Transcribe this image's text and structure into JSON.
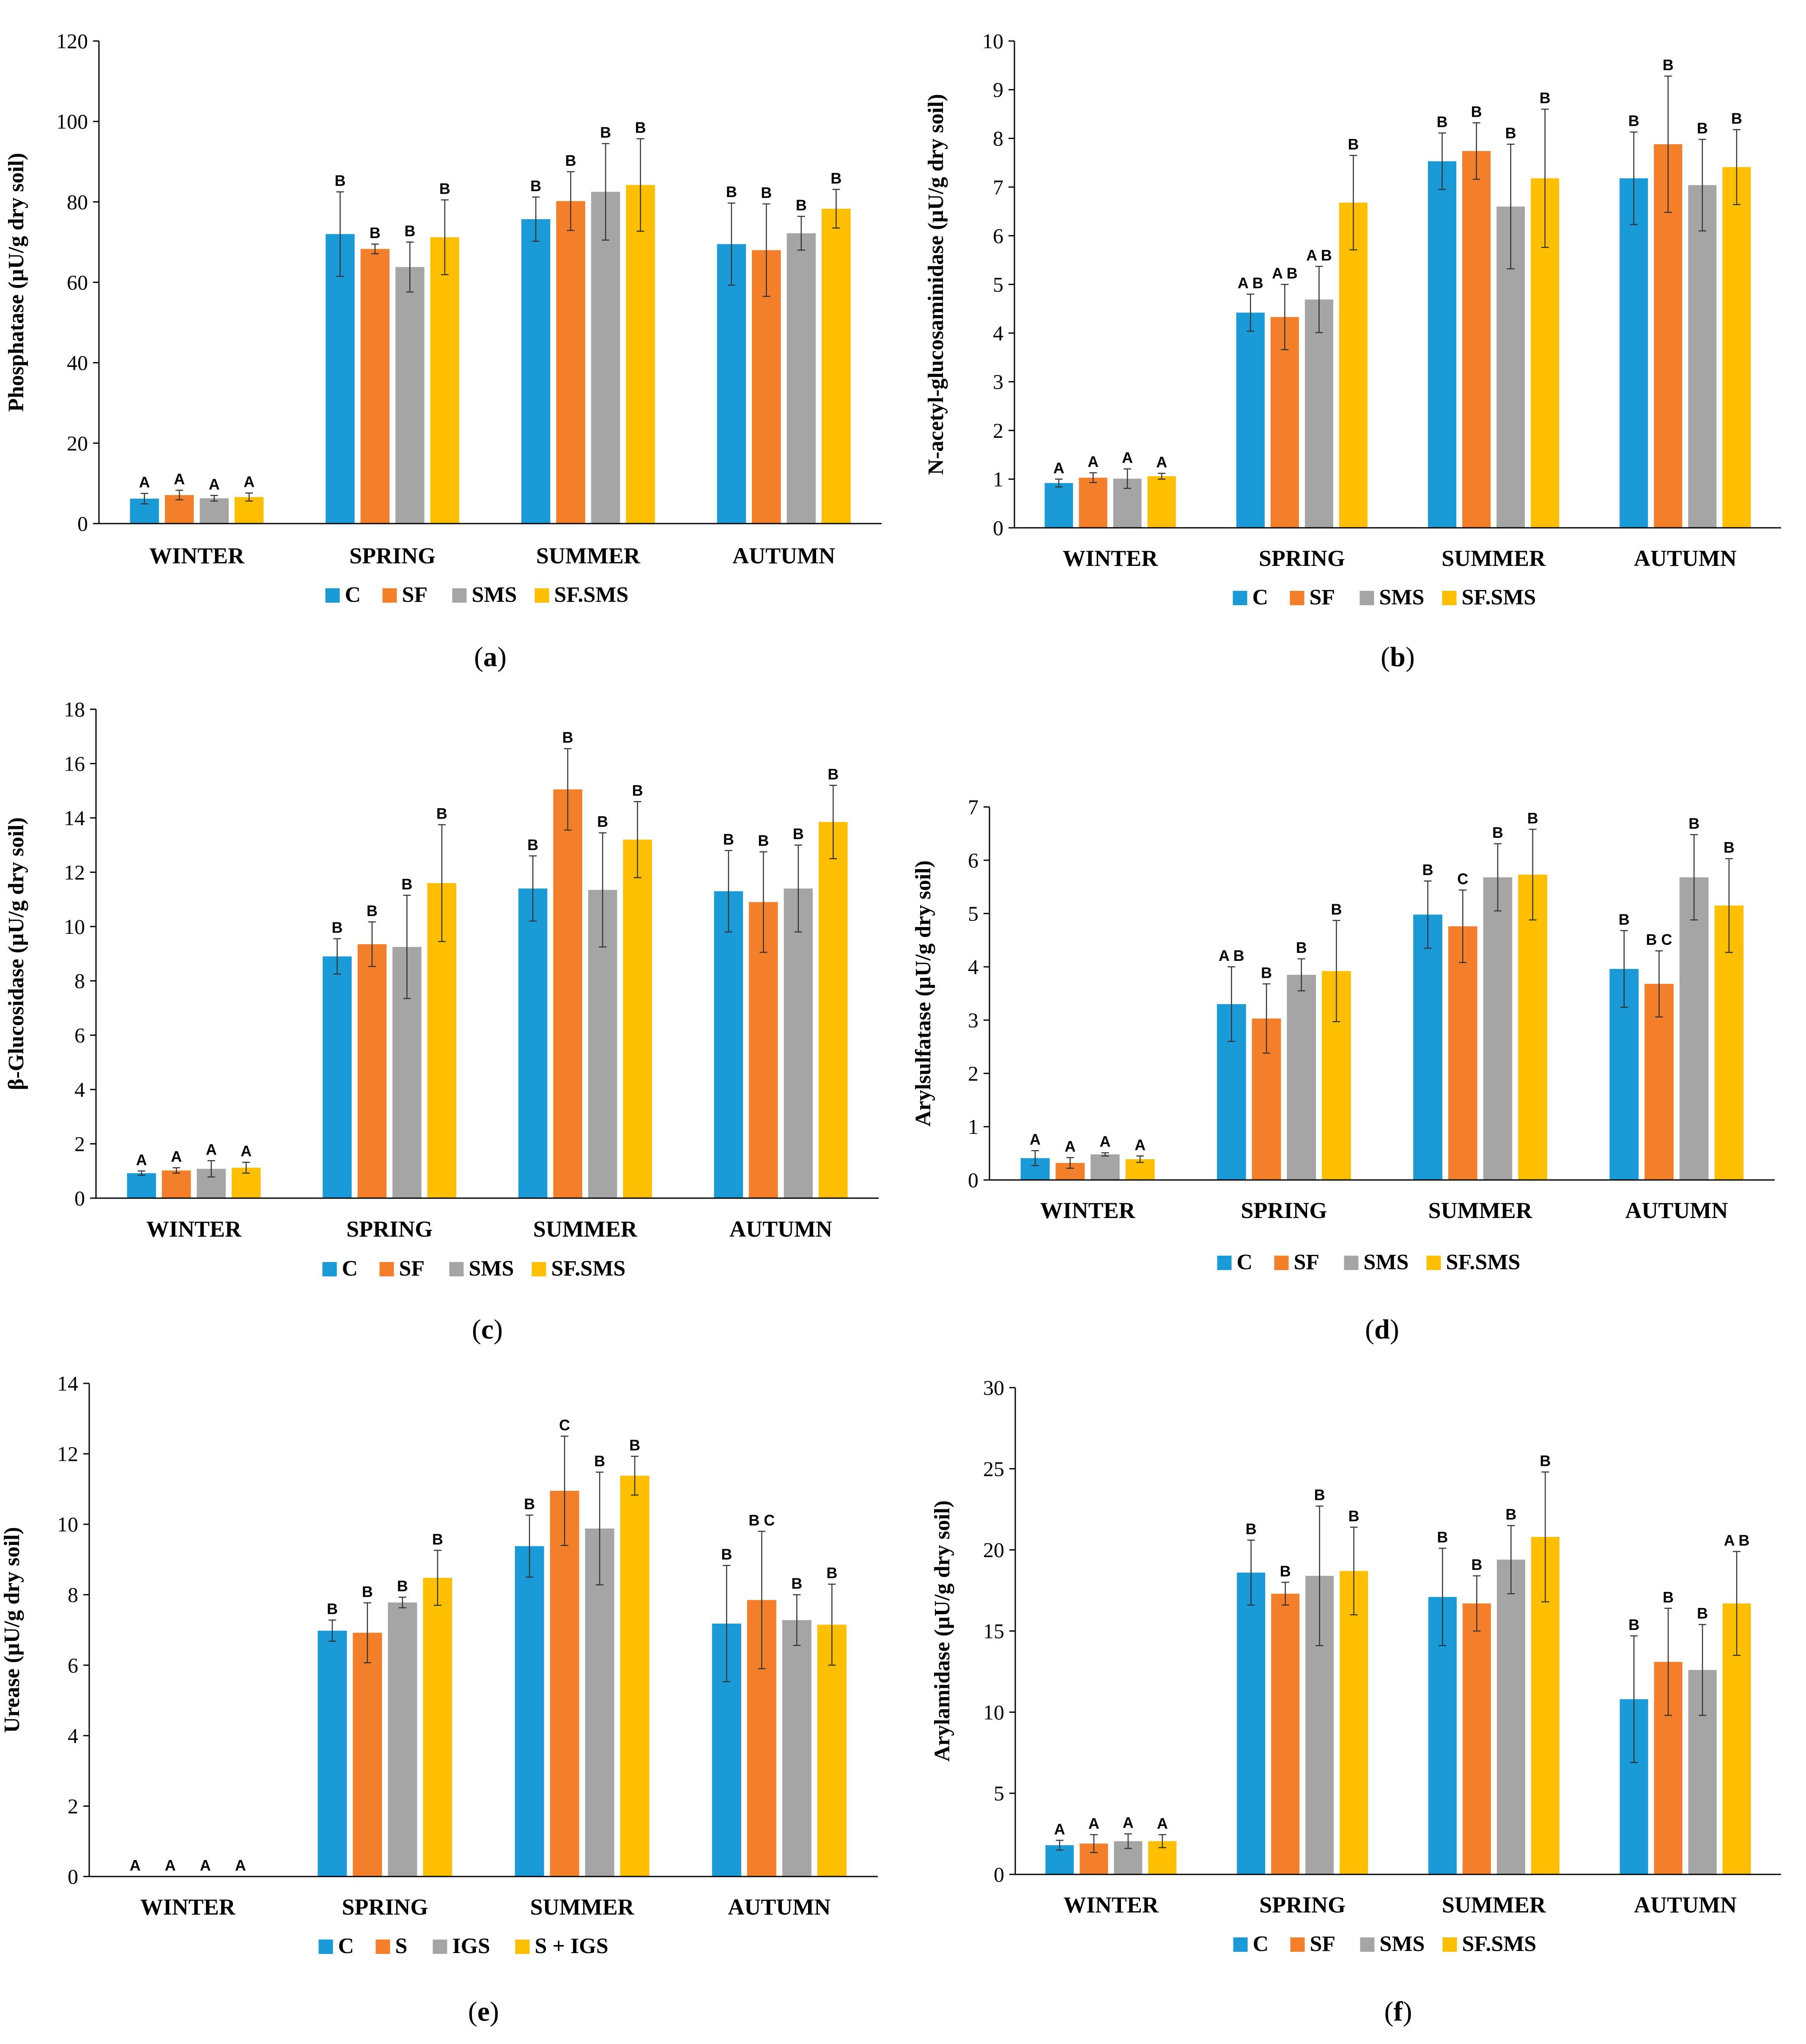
{
  "colors": {
    "C": "#1a9ad7",
    "SF": "#f47f2a",
    "SMS": "#a5a5a5",
    "SF.SMS": "#fdbf00",
    "axis": "#000000",
    "error": "#333333"
  },
  "chart_data": [
    {
      "panel": "(a)",
      "panel_letter": "a",
      "type": "bar",
      "ylabel": "Phosphatase (µU/g dry soil)",
      "ylim": [
        0,
        120
      ],
      "yticks": [
        0,
        20,
        40,
        60,
        80,
        100,
        120
      ],
      "categories": [
        "WINTER",
        "SPRING",
        "SUMMER",
        "AUTUMN"
      ],
      "series": [
        {
          "name": "C",
          "color_key": "C",
          "values": [
            6.2,
            72,
            75.7,
            69.5
          ],
          "errors": [
            1.3,
            10.5,
            5.5,
            10.2
          ],
          "labels": [
            "A",
            "B",
            "B",
            "B"
          ]
        },
        {
          "name": "SF",
          "color_key": "SF",
          "values": [
            7.1,
            68.3,
            80.2,
            68
          ],
          "errors": [
            1.2,
            1.2,
            7.3,
            11.5
          ],
          "labels": [
            "A",
            "B",
            "B",
            "B"
          ]
        },
        {
          "name": "SMS",
          "color_key": "SMS",
          "values": [
            6.3,
            63.8,
            82.5,
            72.2
          ],
          "errors": [
            0.7,
            6.2,
            12,
            4.2
          ],
          "labels": [
            "A",
            "B",
            "B",
            "B"
          ]
        },
        {
          "name": "SF.SMS",
          "color_key": "SF.SMS",
          "values": [
            6.6,
            71.2,
            84.2,
            78.3
          ],
          "errors": [
            1.0,
            9.3,
            11.5,
            4.8
          ],
          "labels": [
            "A",
            "B",
            "B",
            "B"
          ]
        }
      ]
    },
    {
      "panel": "(b)",
      "panel_letter": "b",
      "type": "bar",
      "ylabel": "N-acetyl-glucosaminidase (µU/g dry soil)",
      "ylim": [
        0,
        10
      ],
      "yticks": [
        0,
        1,
        2,
        3,
        4,
        5,
        6,
        7,
        8,
        9,
        10
      ],
      "categories": [
        "WINTER",
        "SPRING",
        "SUMMER",
        "AUTUMN"
      ],
      "series": [
        {
          "name": "C",
          "color_key": "C",
          "values": [
            0.92,
            4.42,
            7.53,
            7.18
          ],
          "errors": [
            0.08,
            0.38,
            0.58,
            0.95
          ],
          "labels": [
            "A",
            "A B",
            "B",
            "B"
          ]
        },
        {
          "name": "SF",
          "color_key": "SF",
          "values": [
            1.03,
            4.33,
            7.74,
            7.88
          ],
          "errors": [
            0.1,
            0.67,
            0.58,
            1.4
          ],
          "labels": [
            "A",
            "A B",
            "B",
            "B"
          ]
        },
        {
          "name": "SMS",
          "color_key": "SMS",
          "values": [
            1.01,
            4.69,
            6.6,
            7.04
          ],
          "errors": [
            0.2,
            0.68,
            1.28,
            0.94
          ],
          "labels": [
            "A",
            "A B",
            "B",
            "B"
          ]
        },
        {
          "name": "SF.SMS",
          "color_key": "SF.SMS",
          "values": [
            1.06,
            6.68,
            7.18,
            7.41
          ],
          "errors": [
            0.06,
            0.97,
            1.42,
            0.77
          ],
          "labels": [
            "A",
            "B",
            "B",
            "B"
          ]
        }
      ]
    },
    {
      "panel": "(c)",
      "panel_letter": "c",
      "type": "bar",
      "ylabel": "β-Glucosidase (µU/g dry soil)",
      "ylim": [
        0,
        18
      ],
      "yticks": [
        0,
        2,
        4,
        6,
        8,
        10,
        12,
        14,
        16,
        18
      ],
      "categories": [
        "WINTER",
        "SPRING",
        "SUMMER",
        "AUTUMN"
      ],
      "series": [
        {
          "name": "C",
          "color_key": "C",
          "values": [
            0.92,
            8.9,
            11.4,
            11.3
          ],
          "errors": [
            0.08,
            0.65,
            1.2,
            1.5
          ],
          "labels": [
            "A",
            "B",
            "B",
            "B"
          ]
        },
        {
          "name": "SF",
          "color_key": "SF",
          "values": [
            1.02,
            9.35,
            15.05,
            10.9
          ],
          "errors": [
            0.1,
            0.82,
            1.5,
            1.85
          ],
          "labels": [
            "A",
            "B",
            "B",
            "B"
          ]
        },
        {
          "name": "SMS",
          "color_key": "SMS",
          "values": [
            1.08,
            9.25,
            11.35,
            11.4
          ],
          "errors": [
            0.3,
            1.9,
            2.1,
            1.6
          ],
          "labels": [
            "A",
            "B",
            "B",
            "B"
          ]
        },
        {
          "name": "SF.SMS",
          "color_key": "SF.SMS",
          "values": [
            1.12,
            11.6,
            13.2,
            13.85
          ],
          "errors": [
            0.2,
            2.15,
            1.4,
            1.35
          ],
          "labels": [
            "A",
            "B",
            "B",
            "B"
          ]
        }
      ]
    },
    {
      "panel": "(d)",
      "panel_letter": "d",
      "type": "bar",
      "ylabel": "Arylsulfatase (µU/g dry soil)",
      "ylim": [
        0,
        7
      ],
      "yticks": [
        0,
        1,
        2,
        3,
        4,
        5,
        6,
        7
      ],
      "categories": [
        "WINTER",
        "SPRING",
        "SUMMER",
        "AUTUMN"
      ],
      "series": [
        {
          "name": "C",
          "color_key": "C",
          "values": [
            0.41,
            3.3,
            4.98,
            3.96
          ],
          "errors": [
            0.14,
            0.7,
            0.63,
            0.72
          ],
          "labels": [
            "A",
            "A B",
            "B",
            "B"
          ]
        },
        {
          "name": "SF",
          "color_key": "SF",
          "values": [
            0.32,
            3.03,
            4.76,
            3.68
          ],
          "errors": [
            0.1,
            0.65,
            0.68,
            0.62
          ],
          "labels": [
            "A",
            "B",
            "C",
            "B C"
          ]
        },
        {
          "name": "SMS",
          "color_key": "SMS",
          "values": [
            0.48,
            3.85,
            5.68,
            5.68
          ],
          "errors": [
            0.03,
            0.3,
            0.63,
            0.8
          ],
          "labels": [
            "A",
            "B",
            "B",
            "B"
          ]
        },
        {
          "name": "SF.SMS",
          "color_key": "SF.SMS",
          "values": [
            0.39,
            3.92,
            5.73,
            5.15
          ],
          "errors": [
            0.06,
            0.95,
            0.85,
            0.88
          ],
          "labels": [
            "A",
            "B",
            "B",
            "B"
          ]
        }
      ]
    },
    {
      "panel": "(e)",
      "panel_letter": "e",
      "type": "bar",
      "ylabel": "Urease (µU/g dry soil)",
      "ylim": [
        0,
        14
      ],
      "yticks": [
        0,
        2,
        4,
        6,
        8,
        10,
        12,
        14
      ],
      "categories": [
        "WINTER",
        "SPRING",
        "SUMMER",
        "AUTUMN"
      ],
      "series": [
        {
          "name": "C",
          "color_key": "C",
          "values": [
            0,
            6.98,
            9.38,
            7.18
          ],
          "errors": [
            0,
            0.3,
            0.88,
            1.65
          ],
          "labels": [
            "A",
            "B",
            "B",
            "B"
          ]
        },
        {
          "name": "S",
          "color_key": "SF",
          "values": [
            0,
            6.92,
            10.95,
            7.85
          ],
          "errors": [
            0,
            0.85,
            1.55,
            1.95
          ],
          "labels": [
            "A",
            "B",
            "C",
            "B C"
          ]
        },
        {
          "name": "IGS",
          "color_key": "SMS",
          "values": [
            0,
            7.78,
            9.88,
            7.28
          ],
          "errors": [
            0,
            0.15,
            1.6,
            0.72
          ],
          "labels": [
            "A",
            "B",
            "B",
            "B"
          ]
        },
        {
          "name": "S + IGS",
          "color_key": "SF.SMS",
          "values": [
            0,
            8.48,
            11.38,
            7.15
          ],
          "errors": [
            0,
            0.78,
            0.55,
            1.15
          ],
          "labels": [
            "A",
            "B",
            "B",
            "B"
          ]
        }
      ]
    },
    {
      "panel": "(f)",
      "panel_letter": "f",
      "type": "bar",
      "ylabel": "Arylamidase (µU/g dry soil)",
      "ylim": [
        0,
        30
      ],
      "yticks": [
        0,
        5,
        10,
        15,
        20,
        25,
        30
      ],
      "categories": [
        "WINTER",
        "SPRING",
        "SUMMER",
        "AUTUMN"
      ],
      "series": [
        {
          "name": "C",
          "color_key": "C",
          "values": [
            1.8,
            18.6,
            17.1,
            10.8
          ],
          "errors": [
            0.3,
            2.0,
            3.0,
            3.9
          ],
          "labels": [
            "A",
            "B",
            "B",
            "B"
          ]
        },
        {
          "name": "SF",
          "color_key": "SF",
          "values": [
            1.9,
            17.3,
            16.7,
            13.1
          ],
          "errors": [
            0.55,
            0.7,
            1.7,
            3.3
          ],
          "labels": [
            "A",
            "B",
            "B",
            "B"
          ]
        },
        {
          "name": "SMS",
          "color_key": "SMS",
          "values": [
            2.05,
            18.4,
            19.4,
            12.6
          ],
          "errors": [
            0.45,
            4.3,
            2.1,
            2.8
          ],
          "labels": [
            "A",
            "B",
            "B",
            "B"
          ]
        },
        {
          "name": "SF.SMS",
          "color_key": "SF.SMS",
          "values": [
            2.05,
            18.7,
            20.8,
            16.7
          ],
          "errors": [
            0.4,
            2.7,
            4.0,
            3.2
          ],
          "labels": [
            "A",
            "B",
            "B",
            "A B"
          ]
        }
      ]
    }
  ]
}
